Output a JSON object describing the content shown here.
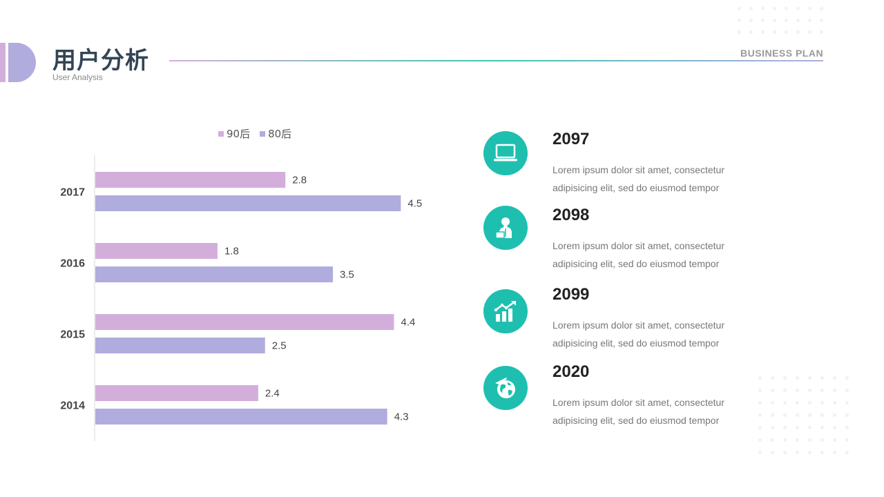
{
  "header": {
    "title": "用户分析",
    "subtitle": "User Analysis",
    "tag": "BUSINESS PLAN"
  },
  "colors": {
    "series_90": "#d3aedb",
    "series_80": "#b0acdd",
    "accent": "#1fbfb0"
  },
  "chart_data": {
    "type": "bar",
    "orientation": "horizontal",
    "categories": [
      "2017",
      "2016",
      "2015",
      "2014"
    ],
    "series": [
      {
        "name": "90后",
        "values": [
          2.8,
          1.8,
          4.4,
          2.4
        ]
      },
      {
        "name": "80后",
        "values": [
          4.5,
          3.5,
          2.5,
          4.3
        ]
      }
    ],
    "xlim": [
      0,
      4.5
    ],
    "grid": false,
    "legend_position": "top"
  },
  "items": [
    {
      "year": "2097",
      "icon": "laptop-icon",
      "line1": "Lorem ipsum dolor sit amet, consectetur",
      "line2": "adipisicing elit, sed do eiusmod tempor"
    },
    {
      "year": "2098",
      "icon": "businessman-icon",
      "line1": "Lorem ipsum dolor sit amet, consectetur",
      "line2": "adipisicing elit, sed do eiusmod tempor"
    },
    {
      "year": "2099",
      "icon": "growth-chart-icon",
      "line1": "Lorem ipsum dolor sit amet, consectetur",
      "line2": "adipisicing elit, sed do eiusmod tempor"
    },
    {
      "year": "2020",
      "icon": "globe-plane-icon",
      "line1": "Lorem ipsum dolor sit amet, consectetur",
      "line2": "adipisicing elit, sed do eiusmod tempor"
    }
  ]
}
